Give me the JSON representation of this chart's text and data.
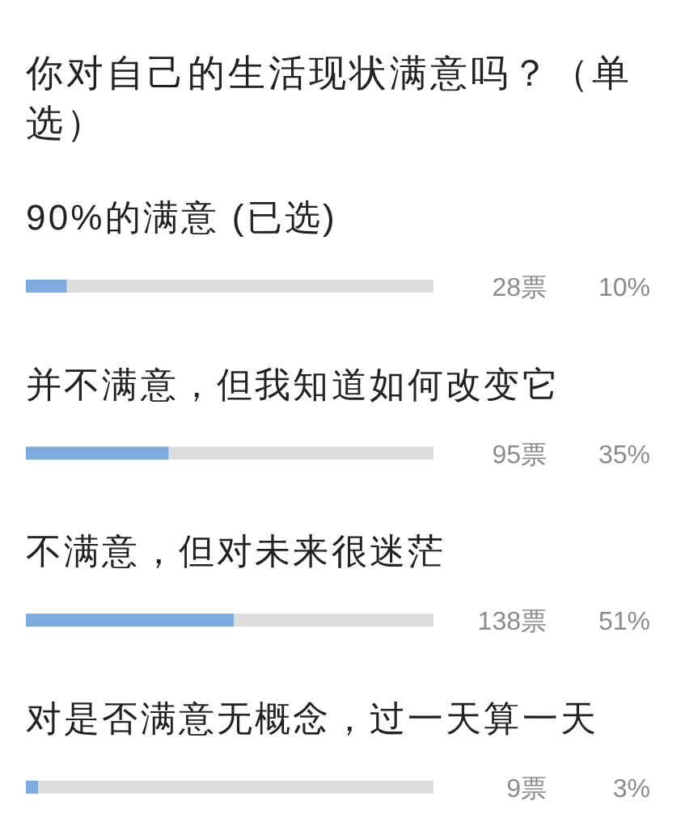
{
  "chart_data": {
    "type": "bar",
    "orientation": "horizontal",
    "title": "你对自己的生活现状满意吗？（单选）",
    "categories": [
      "90%的满意 (已选)",
      "并不满意，但我知道如何改变它",
      "不满意，但对未来很迷茫",
      "对是否满意无概念，过一天算一天"
    ],
    "values": [
      10,
      35,
      51,
      3
    ],
    "value_labels": [
      "10%",
      "35%",
      "51%",
      "3%"
    ],
    "annotations": [
      "28票",
      "95票",
      "138票",
      "9票"
    ],
    "color": "#7babdf",
    "xlim": [
      0,
      100
    ],
    "tick_labels": "y"
  }
}
